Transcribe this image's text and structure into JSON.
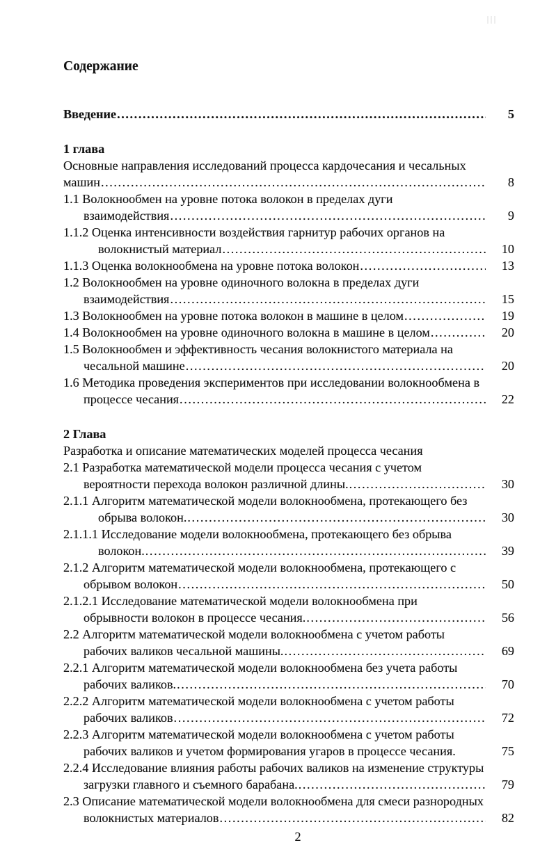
{
  "page": {
    "heading": "Содержание",
    "footer_page_number": "2"
  },
  "colors": {
    "background": "#ffffff",
    "text": "#131313"
  },
  "toc": {
    "lines": [
      {
        "text": "Введение",
        "bold": true,
        "indent": 0,
        "dots": true,
        "page": "5"
      },
      {
        "text": "1 глава",
        "bold": true,
        "indent": 0,
        "dots": false,
        "page": "",
        "gap_before": true
      },
      {
        "text": "Основные направления исследований процесса кардочесания и чесальных",
        "indent": 0,
        "dots": false,
        "page": ""
      },
      {
        "text": "машин",
        "indent": 0,
        "dots": true,
        "page": "8"
      },
      {
        "text": "1.1 Волокнообмен на уровне потока волокон в пределах дуги",
        "indent": 0,
        "dots": false,
        "page": ""
      },
      {
        "text": "взаимодействия",
        "indent": 1,
        "dots": true,
        "page": "9"
      },
      {
        "text": "1.1.2 Оценка интенсивности воздействия гарнитур рабочих органов на",
        "indent": 0,
        "dots": false,
        "page": ""
      },
      {
        "text": "волокнистый материал",
        "indent": 2,
        "dots": true,
        "page": "10"
      },
      {
        "text": "1.1.3 Оценка волокнообмена на уровне потока волокон",
        "indent": 0,
        "dots": true,
        "page": "13"
      },
      {
        "text": "1.2 Волокнообмен на уровне одиночного волокна в пределах дуги",
        "indent": 0,
        "dots": false,
        "page": ""
      },
      {
        "text": "взаимодействия",
        "indent": 1,
        "dots": true,
        "page": "15"
      },
      {
        "text": "1.3 Волокнообмен на уровне потока волокон в машине в целом",
        "indent": 0,
        "dots": true,
        "page": "19"
      },
      {
        "text": "1.4 Волокнообмен на уровне одиночного волокна в машине в целом",
        "indent": 0,
        "dots": true,
        "page": "20"
      },
      {
        "text": "1.5 Волокнообмен и эффективность чесания волокнистого материала на",
        "indent": 0,
        "dots": false,
        "page": ""
      },
      {
        "text": "чесальной машине",
        "indent": 1,
        "dots": true,
        "page": "20"
      },
      {
        "text": "1.6 Методика проведения экспериментов при исследовании волокнообмена в",
        "indent": 0,
        "dots": false,
        "page": ""
      },
      {
        "text": "процессе чесания",
        "indent": 1,
        "dots": true,
        "page": "22"
      },
      {
        "text": "2 Глава",
        "bold": true,
        "indent": 0,
        "dots": false,
        "page": "",
        "gap_before": true
      },
      {
        "text": "Разработка и описание математических моделей процесса чесания",
        "indent": 0,
        "dots": false,
        "page": ""
      },
      {
        "text": "2.1 Разработка математической модели процесса чесания с учетом",
        "indent": 0,
        "dots": false,
        "page": ""
      },
      {
        "text": "вероятности перехода волокон различной длины.",
        "indent": 1,
        "dots": true,
        "page": "30"
      },
      {
        "text": "2.1.1 Алгоритм математической модели волокнообмена, протекающего без",
        "indent": 0,
        "dots": false,
        "page": ""
      },
      {
        "text": "обрыва волокон.",
        "indent": 2,
        "dots": true,
        "page": "30"
      },
      {
        "text": "2.1.1.1 Исследование модели волокнообмена, протекающего без обрыва",
        "indent": 0,
        "dots": false,
        "page": ""
      },
      {
        "text": "волокон.",
        "indent": 2,
        "dots": true,
        "page": "39"
      },
      {
        "text": "2.1.2 Алгоритм математической модели волокнообмена, протекающего с",
        "indent": 0,
        "dots": false,
        "page": ""
      },
      {
        "text": "обрывом волокон",
        "indent": 1,
        "dots": true,
        "page": "50"
      },
      {
        "text": "2.1.2.1 Исследование математической модели волокнообмена при",
        "indent": 0,
        "dots": false,
        "page": ""
      },
      {
        "text": "обрывности волокон в процессе чесания.",
        "indent": 1,
        "dots": true,
        "page": "56"
      },
      {
        "text": "2.2 Алгоритм математической модели волокнообмена с учетом работы",
        "indent": 0,
        "dots": false,
        "page": ""
      },
      {
        "text": "рабочих валиков чесальной машины.",
        "indent": 1,
        "dots": true,
        "page": "69"
      },
      {
        "text": "2.2.1 Алгоритм математической модели волокнообмена без учета работы",
        "indent": 0,
        "dots": false,
        "page": ""
      },
      {
        "text": "рабочих валиков.",
        "indent": 1,
        "dots": true,
        "page": "70"
      },
      {
        "text": "2.2.2 Алгоритм математической модели волокнообмена с учетом работы",
        "indent": 0,
        "dots": false,
        "page": ""
      },
      {
        "text": "рабочих валиков",
        "indent": 1,
        "dots": true,
        "page": "72"
      },
      {
        "text": "2.2.3 Алгоритм математической модели волокнообмена с учетом работы",
        "indent": 0,
        "dots": false,
        "page": ""
      },
      {
        "text": "рабочих валиков и учетом формирования угаров в процессе чесания.",
        "indent": 1,
        "dots": false,
        "page": "75"
      },
      {
        "text": "2.2.4 Исследование влияния работы рабочих валиков на изменение структуры",
        "indent": 0,
        "dots": false,
        "page": ""
      },
      {
        "text": "загрузки главного и съемного барабана.",
        "indent": 1,
        "dots": true,
        "page": "79"
      },
      {
        "text": "2.3 Описание математической модели волокнообмена для смеси разнородных",
        "indent": 0,
        "dots": false,
        "page": ""
      },
      {
        "text": "волокнистых материалов",
        "indent": 1,
        "dots": true,
        "page": "82"
      }
    ]
  }
}
